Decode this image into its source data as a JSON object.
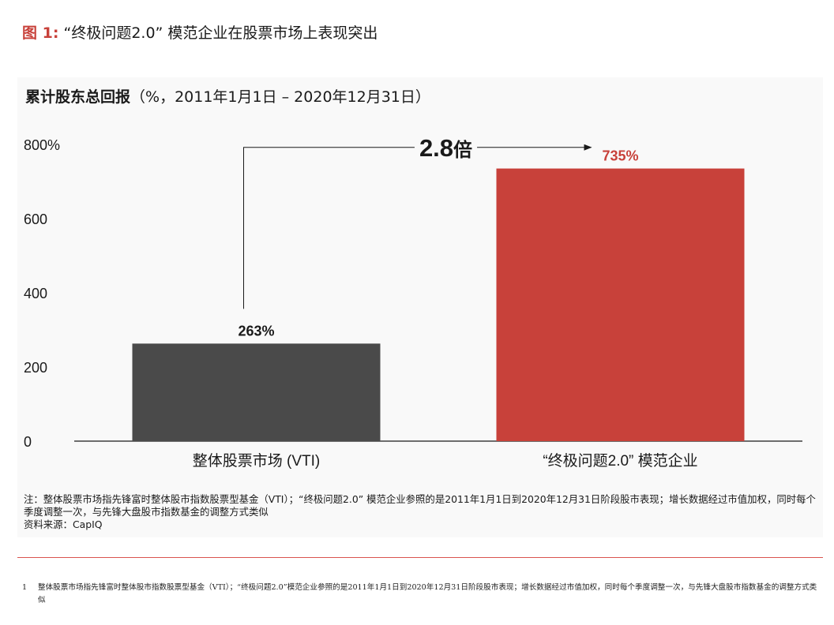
{
  "figure": {
    "number": "图 1:",
    "title": "“终极问题2.0” 模范企业在股票市场上表现突出"
  },
  "chart_title": {
    "bold": "累计股东总回报",
    "rest": "（%，2011年1月1日 – 2020年12月31日）"
  },
  "colors": {
    "accent": "#c8413a",
    "bar_market": "#4a4a4a",
    "bar_leaders": "#c8413a",
    "text": "#1a1a1a"
  },
  "chart_data": {
    "type": "bar",
    "title": "累计股东总回报（%，2011年1月1日 – 2020年12月31日）",
    "categories": [
      "整体股票市场 (VTI)",
      "“终极问题2.0” 模范企业"
    ],
    "values": [
      263,
      735
    ],
    "value_labels": [
      "263%",
      "735%"
    ],
    "ylim": [
      0,
      800
    ],
    "yticks": [
      0,
      200,
      400,
      600,
      800
    ],
    "ytick_labels": [
      "0",
      "200",
      "400",
      "600",
      "800%"
    ],
    "grid": false,
    "annotation": {
      "text": "2.8",
      "suffix": "倍"
    }
  },
  "notes": {
    "note": "注：整体股票市场指先锋富时整体股市指数股票型基金（VTI）；“终极问题2.0” 模范企业参照的是2011年1月1日到2020年12月31日阶段股市表现；增长数据经过市值加权，同时每个季度调整一次，与先锋大盘股市指数基金的调整方式类似",
    "source": "资料来源：CapIQ"
  },
  "footnote": {
    "number": "1",
    "text": "整体股票市场指先锋富时整体股市指数股票型基金（VTI）；“终极问题2.0”模范企业参照的是2011年1月1日到2020年12月31日阶段股市表现；增长数据经过市值加权，同时每个季度调整一次，与先锋大盘股市指数基金的调整方式类似"
  }
}
